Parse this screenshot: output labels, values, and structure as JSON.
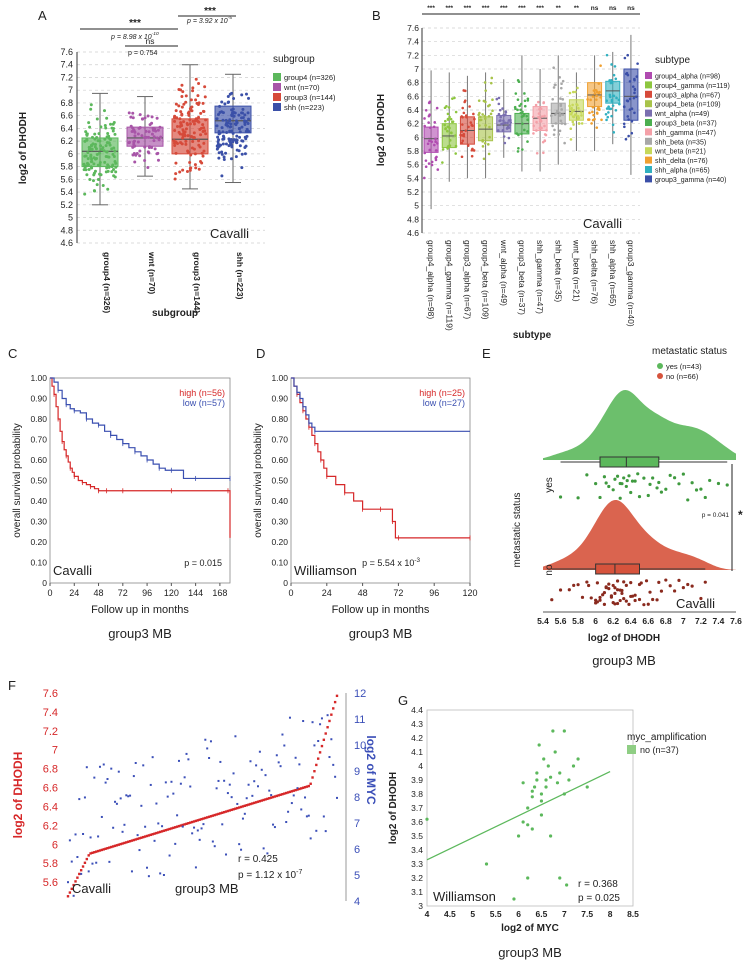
{
  "colors": {
    "group4": "#5cb85c",
    "wnt": "#a855a8",
    "group3": "#d64a3a",
    "shh": "#3b50a8",
    "high": "#d62728",
    "low": "#3a4fb0",
    "yes": "#5cb85c",
    "no": "#d6533c",
    "dhodh_red": "#d62728",
    "myc_blue": "#3b4fb8",
    "grid": "#cfcfcf",
    "g4_alpha": "#b04bb0",
    "g4_gamma": "#8dc63f",
    "g3_alpha": "#d64a3a",
    "g4_beta": "#a8c34a",
    "wnt_alpha": "#7a6fb0",
    "g3_beta": "#4caf50",
    "shh_gamma": "#f4a0a8",
    "shh_beta": "#a8a8a8",
    "wnt_beta": "#c6d85a",
    "shh_delta": "#f0a030",
    "shh_alpha": "#30b0c0",
    "g3_gamma": "#3b4fa8"
  },
  "chart_data": [
    {
      "panel": "A",
      "type": "box",
      "categories": [
        "group4 (n=326)",
        "wnt (n=70)",
        "group3 (n=144)",
        "shh (n=223)"
      ],
      "series": [
        {
          "name": "group4 (n=326)",
          "q1": 5.8,
          "median": 6.04,
          "q3": 6.25,
          "whisker_low": 5.2,
          "whisker_high": 6.95,
          "n": 326
        },
        {
          "name": "wnt (n=70)",
          "q1": 6.12,
          "median": 6.25,
          "q3": 6.42,
          "whisker_low": 5.65,
          "whisker_high": 6.9,
          "n": 70
        },
        {
          "name": "group3 (n=144)",
          "q1": 6.0,
          "median": 6.23,
          "q3": 6.55,
          "whisker_low": 5.45,
          "whisker_high": 7.4,
          "n": 144
        },
        {
          "name": "shh (n=223)",
          "q1": 6.33,
          "median": 6.52,
          "q3": 6.75,
          "whisker_low": 5.55,
          "whisker_high": 7.25,
          "n": 223
        }
      ],
      "ylabel": "log2 of DHODH",
      "xlabel": "subgroup",
      "ylim": [
        4.6,
        7.6
      ],
      "yticks": [
        "4.6",
        "4.8",
        "5",
        "5.2",
        "5.4",
        "5.6",
        "5.8",
        "6",
        "6.2",
        "6.4",
        "6.6",
        "6.8",
        "7",
        "7.2",
        "7.4",
        "7.6"
      ],
      "legend_title": "subgroup",
      "legend_placement": "right",
      "annotations": [
        "***",
        "p = 8.98 x 10",
        "-10",
        "ns",
        "p = 0.754",
        "***",
        "p = 3.92 x 10",
        "-5"
      ],
      "dataset": "Cavalli",
      "grid": true
    },
    {
      "panel": "B",
      "type": "box",
      "categories": [
        "group4_alpha (n=98)",
        "group4_gamma (n=119)",
        "group3_alpha (n=67)",
        "group4_beta (n=109)",
        "wnt_alpha (n=49)",
        "group3_beta (n=37)",
        "shh_gamma (n=47)",
        "shh_beta (n=35)",
        "wnt_beta (n=21)",
        "shh_delta (n=76)",
        "shh_alpha (n=65)",
        "group3_gamma (n=40)"
      ],
      "series": [
        {
          "name": "group4_alpha",
          "q1": 5.78,
          "median": 5.98,
          "q3": 6.15,
          "whisker_low": 4.95,
          "whisker_high": 6.98
        },
        {
          "name": "group4_gamma",
          "q1": 5.85,
          "median": 6.02,
          "q3": 6.2,
          "whisker_low": 5.35,
          "whisker_high": 6.95
        },
        {
          "name": "group3_alpha",
          "q1": 5.9,
          "median": 6.1,
          "q3": 6.3,
          "whisker_low": 5.4,
          "whisker_high": 6.9
        },
        {
          "name": "group4_beta",
          "q1": 5.95,
          "median": 6.12,
          "q3": 6.3,
          "whisker_low": 5.4,
          "whisker_high": 6.95
        },
        {
          "name": "wnt_alpha",
          "q1": 6.08,
          "median": 6.18,
          "q3": 6.32,
          "whisker_low": 5.7,
          "whisker_high": 6.85
        },
        {
          "name": "group3_beta",
          "q1": 6.05,
          "median": 6.2,
          "q3": 6.35,
          "whisker_low": 5.5,
          "whisker_high": 7.2
        },
        {
          "name": "shh_gamma",
          "q1": 6.1,
          "median": 6.28,
          "q3": 6.45,
          "whisker_low": 5.5,
          "whisker_high": 7.0
        },
        {
          "name": "shh_beta",
          "q1": 6.2,
          "median": 6.35,
          "q3": 6.5,
          "whisker_low": 5.6,
          "whisker_high": 7.2
        },
        {
          "name": "wnt_beta",
          "q1": 6.25,
          "median": 6.38,
          "q3": 6.55,
          "whisker_low": 5.8,
          "whisker_high": 6.95
        },
        {
          "name": "shh_delta",
          "q1": 6.45,
          "median": 6.62,
          "q3": 6.8,
          "whisker_low": 5.8,
          "whisker_high": 7.2
        },
        {
          "name": "shh_alpha",
          "q1": 6.5,
          "median": 6.68,
          "q3": 6.82,
          "whisker_low": 5.9,
          "whisker_high": 7.25
        },
        {
          "name": "group3_gamma",
          "q1": 6.25,
          "median": 6.6,
          "q3": 7.0,
          "whisker_low": 5.45,
          "whisker_high": 7.5
        }
      ],
      "legend_entries": [
        "group4_alpha (n=98)",
        "group4_gamma (n=119)",
        "group3_alpha (n=67)",
        "group4_beta (n=109)",
        "wnt_alpha (n=49)",
        "group3_beta (n=37)",
        "shh_gamma (n=47)",
        "shh_beta (n=35)",
        "wnt_beta (n=21)",
        "shh_delta (n=76)",
        "shh_alpha (n=65)",
        "group3_gamma (n=40)"
      ],
      "significance": [
        "***",
        "***",
        "***",
        "***",
        "***",
        "***",
        "***",
        "**",
        "**",
        "ns",
        "ns",
        "ns"
      ],
      "ylabel": "log2 of DHODH",
      "xlabel": "subtype",
      "ylim": [
        4.6,
        7.6
      ],
      "yticks": [
        "4.6",
        "4.8",
        "5",
        "5.2",
        "5.4",
        "5.6",
        "5.8",
        "6",
        "6.2",
        "6.4",
        "6.6",
        "6.8",
        "7",
        "7.2",
        "7.4",
        "7.6"
      ],
      "legend_title": "subtype",
      "legend_placement": "right",
      "dataset": "Cavalli",
      "grid": true
    },
    {
      "panel": "C",
      "type": "line",
      "series": [
        {
          "name": "high (n=56)",
          "x": [
            0,
            2,
            4,
            6,
            8,
            10,
            12,
            14,
            16,
            18,
            20,
            22,
            24,
            28,
            32,
            36,
            40,
            44,
            48,
            52,
            56,
            60,
            72,
            96,
            120,
            168,
            176,
            178
          ],
          "y": [
            1.0,
            0.96,
            0.92,
            0.86,
            0.8,
            0.74,
            0.69,
            0.65,
            0.62,
            0.59,
            0.56,
            0.54,
            0.52,
            0.5,
            0.49,
            0.48,
            0.47,
            0.46,
            0.45,
            0.45,
            0.45,
            0.45,
            0.45,
            0.45,
            0.45,
            0.45,
            0.45,
            0.22
          ]
        },
        {
          "name": "low (n=57)",
          "x": [
            0,
            4,
            8,
            12,
            16,
            20,
            24,
            30,
            36,
            42,
            48,
            54,
            60,
            66,
            72,
            78,
            84,
            90,
            96,
            102,
            108,
            114,
            120,
            132,
            144,
            168,
            178
          ],
          "y": [
            1.0,
            0.98,
            0.94,
            0.9,
            0.87,
            0.85,
            0.84,
            0.83,
            0.8,
            0.78,
            0.77,
            0.74,
            0.72,
            0.7,
            0.68,
            0.66,
            0.64,
            0.62,
            0.6,
            0.58,
            0.56,
            0.55,
            0.55,
            0.51,
            0.51,
            0.51,
            0.51
          ]
        }
      ],
      "ylabel": "overall survival probability",
      "xlabel": "Follow up in months",
      "xticks": [
        "0",
        "24",
        "48",
        "72",
        "96",
        "120",
        "144",
        "168"
      ],
      "yticks": [
        "0",
        "0.10",
        "0.20",
        "0.30",
        "0.40",
        "0.50",
        "0.60",
        "0.70",
        "0.80",
        "0.90",
        "1.00"
      ],
      "xlim": [
        0,
        178
      ],
      "ylim": [
        0,
        1
      ],
      "dataset": "Cavalli",
      "pvalue": "p = 0.015",
      "caption": "group3 MB"
    },
    {
      "panel": "D",
      "type": "line",
      "series": [
        {
          "name": "high (n=25)",
          "x": [
            0,
            2,
            4,
            6,
            8,
            10,
            12,
            14,
            16,
            18,
            20,
            22,
            24,
            30,
            36,
            42,
            48,
            54,
            60,
            66,
            68,
            70,
            72,
            96,
            120
          ],
          "y": [
            1.0,
            0.96,
            0.92,
            0.88,
            0.84,
            0.8,
            0.76,
            0.72,
            0.68,
            0.64,
            0.6,
            0.56,
            0.52,
            0.48,
            0.44,
            0.4,
            0.36,
            0.36,
            0.36,
            0.36,
            0.3,
            0.22,
            0.22,
            0.22,
            0.22
          ]
        },
        {
          "name": "low (n=27)",
          "x": [
            0,
            2,
            4,
            6,
            8,
            10,
            12,
            14,
            16,
            120
          ],
          "y": [
            1.0,
            0.96,
            0.93,
            0.9,
            0.86,
            0.82,
            0.78,
            0.76,
            0.74,
            0.74
          ]
        }
      ],
      "ylabel": "overall survival probability",
      "xlabel": "Follow up in months",
      "xticks": [
        "0",
        "24",
        "48",
        "72",
        "96",
        "120"
      ],
      "yticks": [
        "0",
        "0.10",
        "0.20",
        "0.30",
        "0.40",
        "0.50",
        "0.60",
        "0.70",
        "0.80",
        "0.90",
        "1.00"
      ],
      "xlim": [
        0,
        120
      ],
      "ylim": [
        0,
        1
      ],
      "dataset": "Williamson",
      "pvalue": "p = 5.54 x 10",
      "pvalue_exp": "-3",
      "caption": "group3 MB"
    },
    {
      "panel": "E",
      "type": "scatter",
      "series": [
        {
          "name": "yes (n=43)",
          "box": {
            "q1": 6.05,
            "median": 6.35,
            "q3": 6.72,
            "whisker_low": 5.6,
            "whisker_high": 7.5
          },
          "x": [
            5.6,
            5.8,
            5.9,
            6.0,
            6.05,
            6.1,
            6.12,
            6.15,
            6.2,
            6.22,
            6.25,
            6.28,
            6.3,
            6.32,
            6.35,
            6.36,
            6.38,
            6.4,
            6.42,
            6.45,
            6.48,
            6.5,
            6.55,
            6.6,
            6.62,
            6.65,
            6.7,
            6.72,
            6.75,
            6.8,
            6.85,
            6.9,
            6.95,
            7.0,
            7.05,
            7.1,
            7.15,
            7.2,
            7.25,
            7.3,
            7.4,
            7.5,
            6.28
          ]
        },
        {
          "name": "no (n=66)",
          "box": {
            "q1": 6.0,
            "median": 6.22,
            "q3": 6.5,
            "whisker_low": 5.5,
            "whisker_high": 7.25
          },
          "x": [
            5.5,
            5.6,
            5.7,
            5.75,
            5.8,
            5.85,
            5.9,
            5.92,
            5.95,
            6.0,
            6.0,
            6.02,
            6.05,
            6.05,
            6.08,
            6.1,
            6.1,
            6.12,
            6.12,
            6.15,
            6.15,
            6.18,
            6.18,
            6.2,
            6.2,
            6.22,
            6.22,
            6.22,
            6.25,
            6.25,
            6.25,
            6.28,
            6.28,
            6.3,
            6.3,
            6.32,
            6.32,
            6.35,
            6.35,
            6.38,
            6.4,
            6.4,
            6.42,
            6.45,
            6.45,
            6.5,
            6.5,
            6.52,
            6.55,
            6.58,
            6.6,
            6.62,
            6.65,
            6.7,
            6.72,
            6.75,
            6.8,
            6.85,
            6.9,
            6.95,
            7.0,
            7.05,
            7.1,
            7.2,
            7.25,
            6.02
          ]
        }
      ],
      "legend_title": "metastatic status",
      "legend_placement": "top-right",
      "ylabel": "metastatic status",
      "xlabel": "log2 of DHODH",
      "categories": [
        "yes",
        "no"
      ],
      "xticks": [
        "5.4",
        "5.6",
        "5.8",
        "6",
        "6.2",
        "6.4",
        "6.6",
        "6.8",
        "7",
        "7.2",
        "7.4",
        "7.6"
      ],
      "xlim": [
        5.4,
        7.6
      ],
      "pvalue": "p = 0.041",
      "star": "*",
      "dataset": "Cavalli",
      "caption": "group3 MB"
    },
    {
      "panel": "F",
      "type": "scatter",
      "series": [
        {
          "name": "log2 of DHODH",
          "axis": "left",
          "trend": "increasing",
          "n": 144,
          "y_range": [
            5.45,
            7.55
          ]
        },
        {
          "name": "log2 of MYC",
          "axis": "right",
          "n": 144,
          "y_range": [
            4.2,
            11.9
          ]
        }
      ],
      "ylabel_left": "log2 of DHODH",
      "ylabel_right": "log2 of MYC",
      "yticks_left": [
        "5.6",
        "5.8",
        "6",
        "6.2",
        "6.4",
        "6.6",
        "6.8",
        "7",
        "7.2",
        "7.4",
        "7.6"
      ],
      "yticks_right": [
        "4",
        "5",
        "6",
        "7",
        "8",
        "9",
        "10",
        "11",
        "12"
      ],
      "ylim_left": [
        5.4,
        7.6
      ],
      "ylim_right": [
        4,
        12
      ],
      "r": "r = 0.425",
      "pvalue": "p = 1.12 x 10",
      "pvalue_exp": "-7",
      "dataset": "Cavalli",
      "label": "group3 MB"
    },
    {
      "panel": "G",
      "type": "scatter",
      "series": [
        {
          "name": "no (n=37)",
          "x": [
            4.0,
            5.3,
            5.9,
            6.0,
            6.1,
            6.1,
            6.2,
            6.2,
            6.3,
            6.3,
            6.3,
            6.35,
            6.4,
            6.4,
            6.45,
            6.5,
            6.5,
            6.5,
            6.55,
            6.6,
            6.6,
            6.65,
            6.7,
            6.7,
            6.75,
            6.8,
            6.85,
            6.9,
            6.9,
            7.0,
            7.0,
            7.05,
            7.1,
            7.2,
            7.3,
            7.5,
            6.2
          ],
          "y": [
            3.62,
            3.3,
            3.05,
            3.5,
            3.88,
            3.6,
            3.7,
            3.2,
            3.82,
            3.78,
            3.55,
            3.85,
            3.95,
            3.9,
            4.15,
            3.8,
            3.75,
            3.65,
            4.05,
            3.9,
            3.85,
            4.0,
            3.92,
            3.5,
            4.25,
            4.1,
            3.88,
            3.95,
            3.2,
            4.25,
            3.8,
            3.15,
            3.9,
            4.0,
            4.05,
            3.85,
            3.58
          ]
        }
      ],
      "trendline": {
        "x": [
          4.0,
          8.0
        ],
        "y": [
          3.33,
          3.96
        ]
      },
      "legend_title": "myc_amplification",
      "legend_placement": "top-right",
      "ylabel": "log2 of DHODH",
      "xlabel": "log2 of MYC",
      "xticks": [
        "4",
        "4.5",
        "5",
        "5.5",
        "6",
        "6.5",
        "7",
        "7.5",
        "8",
        "8.5"
      ],
      "yticks": [
        "3",
        "3.1",
        "3.2",
        "3.3",
        "3.4",
        "3.5",
        "3.6",
        "3.7",
        "3.8",
        "3.9",
        "4",
        "4.1",
        "4.2",
        "4.3",
        "4.4"
      ],
      "xlim": [
        4,
        8.5
      ],
      "ylim": [
        3.0,
        4.4
      ],
      "r": "r = 0.368",
      "pvalue": "p = 0.025",
      "dataset": "Williamson",
      "caption": "group3 MB"
    }
  ]
}
